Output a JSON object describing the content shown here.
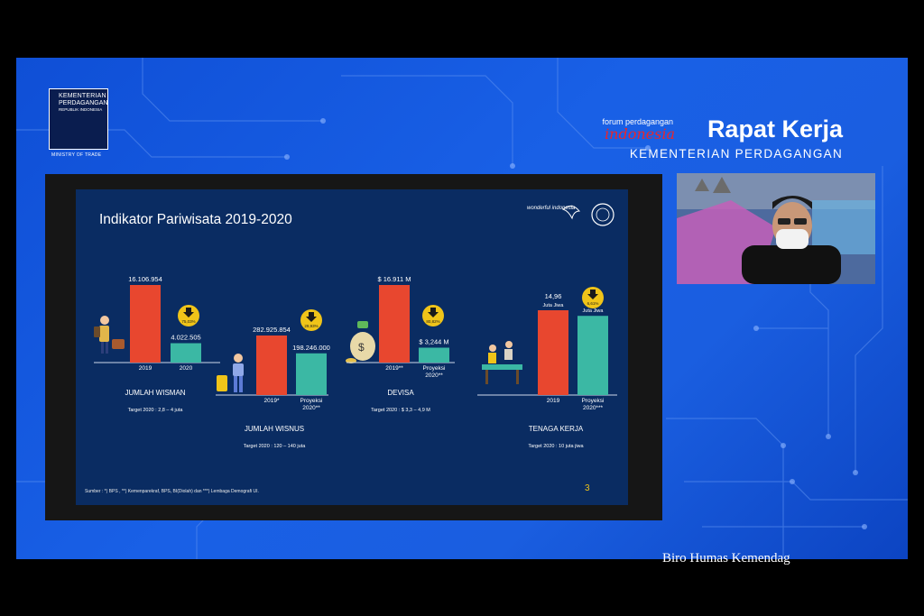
{
  "header": {
    "ministry_logo": {
      "line1": "KEMENTERIAN",
      "line2": "PERDAGANGAN",
      "line3": "REPUBLIK INDONESIA",
      "line4": "MINISTRY OF TRADE"
    },
    "forum_text": "forum perdagangan",
    "forum_brand": "indonesia",
    "event_title": "Rapat Kerja",
    "event_subtitle": "KEMENTERIAN PERDAGANGAN"
  },
  "slide": {
    "title": "Indikator Pariwisata 2019-2020",
    "brand": "wonderful indonesia",
    "page_number": "3",
    "source_note": "Sumber : *) BPS , **) Kemenparekraf, BPS, BI(Diolah) dan ***) Lembaga Demografi UI.",
    "colors": {
      "bar_2019": "#e8472f",
      "bar_2020": "#3bb8a4",
      "badge": "#f0c419",
      "background": "#0a2c62"
    }
  },
  "chart_data": [
    {
      "type": "bar",
      "title": "JUMLAH WISMAN",
      "categories": [
        "2019",
        "2020"
      ],
      "values": [
        16106954,
        4022505
      ],
      "value_labels": [
        "16.106.954",
        "4.022.505"
      ],
      "change_badge": "75,03%",
      "change_direction": "down",
      "target": "Target  2020 : 2,8 – 4 juta"
    },
    {
      "type": "bar",
      "title": "JUMLAH WISNUS",
      "categories": [
        "2019*",
        "Proyeksi 2020**"
      ],
      "values": [
        282925854,
        198246000
      ],
      "value_labels": [
        "282.925.854",
        "198.246.000"
      ],
      "change_badge": "29,93%",
      "change_direction": "down",
      "target": "Target  2020 : 120 – 140 juta"
    },
    {
      "type": "bar",
      "title": "DEVISA",
      "categories": [
        "2019**",
        "Proyeksi 2020**"
      ],
      "values": [
        16.911,
        3.244
      ],
      "value_labels": [
        "$ 16.911 M",
        "$ 3,244 M"
      ],
      "change_badge": "80,82%",
      "change_direction": "down",
      "target": "Target  2020 : $ 3,3 – 4,9 M"
    },
    {
      "type": "bar",
      "title": "TENAGA KERJA",
      "categories": [
        "2019",
        "Proyeksi 2020***"
      ],
      "values": [
        14.96,
        13.97
      ],
      "value_labels": [
        "14,96",
        "13,97"
      ],
      "value_units": [
        "Juta Jiwa",
        "Juta Jiwa"
      ],
      "change_badge": "6,61%",
      "change_direction": "down",
      "target": "Target  2020 : 10 juta jiwa"
    }
  ],
  "footer": {
    "credit": "Biro Humas Kemendag"
  }
}
